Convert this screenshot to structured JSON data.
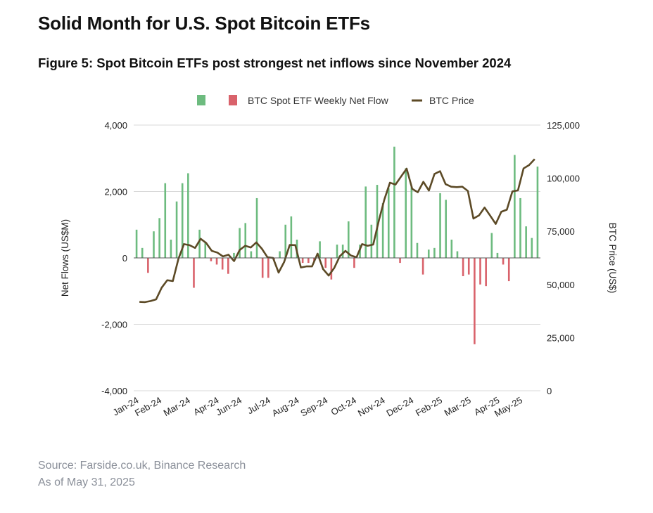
{
  "header": {
    "title": "Solid Month for U.S. Spot Bitcoin ETFs",
    "figure_title": "Figure 5: Spot Bitcoin ETFs post strongest net inflows since November 2024"
  },
  "footer": {
    "source": "Source: Farside.co.uk, Binance Research",
    "as_of": "As of May 31, 2025"
  },
  "colors": {
    "inflow": "#6dbb7f",
    "outflow": "#d9626b",
    "price": "#5c4a26",
    "grid": "#d9d9d9",
    "axis": "#333333"
  },
  "chart_data": {
    "type": "bar",
    "legend": {
      "position": "top",
      "items": [
        {
          "label": "",
          "color": "#6dbb7f",
          "kind": "bar"
        },
        {
          "label": "BTC Spot ETF Weekly Net Flow",
          "color": "#d9626b",
          "kind": "bar"
        },
        {
          "label": "BTC Price",
          "color": "#5c4a26",
          "kind": "line"
        }
      ]
    },
    "ylabel_left": "Net Flows (US$M)",
    "ylabel_right": "BTC Price (US$)",
    "ylim_left": [
      -4000,
      4000
    ],
    "yticks_left": [
      {
        "value": 4000,
        "label": "4,000"
      },
      {
        "value": 2000,
        "label": "2,000"
      },
      {
        "value": 0,
        "label": "0"
      },
      {
        "value": -2000,
        "label": "-2,000"
      },
      {
        "value": -4000,
        "label": "-4,000"
      }
    ],
    "ylim_right": [
      0,
      125000
    ],
    "yticks_right": [
      {
        "value": 125000,
        "label": "125,000"
      },
      {
        "value": 100000,
        "label": "100,000"
      },
      {
        "value": 75000,
        "label": "75,000"
      },
      {
        "value": 50000,
        "label": "50,000"
      },
      {
        "value": 25000,
        "label": "25,000"
      },
      {
        "value": 0,
        "label": "0"
      }
    ],
    "grid": true,
    "x_tick_labels": [
      "Jan-24",
      "Feb-24",
      "Mar-24",
      "Apr-24",
      "Jun-24",
      "Jul-24",
      "Aug-24",
      "Sep-24",
      "Oct-24",
      "Nov-24",
      "Dec-24",
      "Feb-25",
      "Mar-25",
      "Apr-25",
      "May-25"
    ],
    "x_tick_index": [
      0,
      4,
      9,
      14,
      18,
      23,
      28,
      33,
      38,
      43,
      48,
      53,
      58,
      63,
      67
    ],
    "weekly_net_flow": [
      850,
      300,
      -450,
      800,
      1200,
      2250,
      550,
      1700,
      2250,
      2550,
      -900,
      850,
      450,
      -100,
      -200,
      -350,
      -480,
      150,
      900,
      1050,
      200,
      1800,
      -600,
      -600,
      -50,
      200,
      1000,
      1250,
      550,
      -150,
      -150,
      -100,
      500,
      -300,
      -650,
      400,
      400,
      1100,
      -300,
      400,
      2150,
      1000,
      2200,
      1650,
      2100,
      3350,
      -150,
      2700,
      2150,
      450,
      -500,
      250,
      300,
      1950,
      1750,
      550,
      200,
      -550,
      -500,
      -2600,
      -800,
      -850,
      750,
      150,
      -200,
      -700,
      3100,
      1800,
      950,
      600,
      2750
    ],
    "btc_price": [
      41800,
      41700,
      42200,
      43000,
      48500,
      52000,
      51600,
      62000,
      69000,
      68500,
      67200,
      71500,
      69500,
      65800,
      65000,
      63200,
      64000,
      61000,
      66200,
      68200,
      67400,
      69800,
      66800,
      62800,
      62500,
      55600,
      60600,
      68600,
      68500,
      58000,
      58500,
      58500,
      64500,
      57200,
      54200,
      57800,
      63300,
      65800,
      63600,
      62800,
      69000,
      68200,
      68800,
      80000,
      90000,
      97900,
      97000,
      100800,
      104500,
      95000,
      93400,
      98300,
      94200,
      102000,
      103300,
      97200,
      96000,
      95800,
      96000,
      94000,
      81000,
      82500,
      86200,
      82400,
      78500,
      84200,
      85200,
      93800,
      94300,
      104600,
      106200,
      109000
    ],
    "price_x_offset": -0.5
  }
}
